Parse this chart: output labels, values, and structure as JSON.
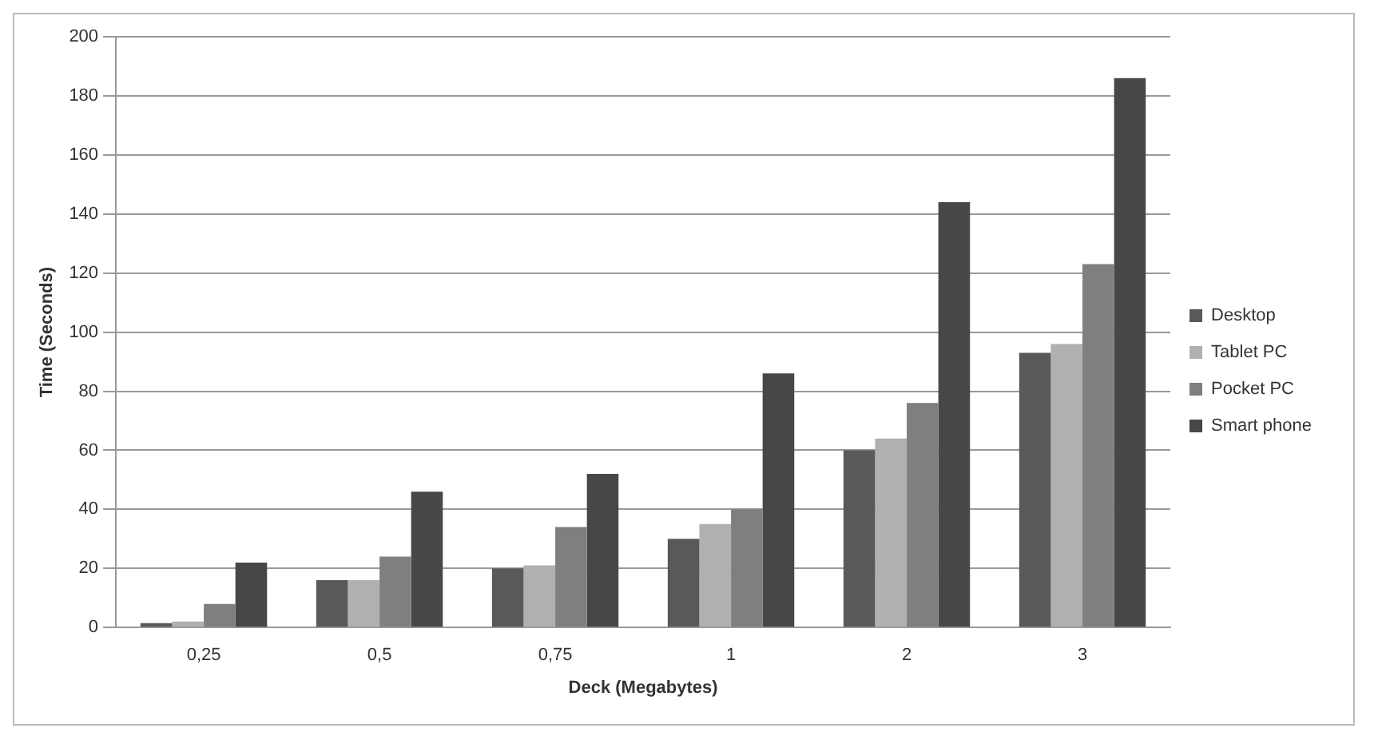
{
  "chart_data": {
    "type": "bar",
    "xlabel": "Deck (Megabytes)",
    "ylabel": "Time (Seconds)",
    "categories": [
      "0,25",
      "0,5",
      "0,75",
      "1",
      "2",
      "3"
    ],
    "series": [
      {
        "name": "Desktop",
        "color": "#595959",
        "values": [
          1.5,
          16,
          20,
          30,
          60,
          93
        ]
      },
      {
        "name": "Tablet PC",
        "color": "#b0b0b0",
        "values": [
          2,
          16,
          21,
          35,
          64,
          96
        ]
      },
      {
        "name": "Pocket PC",
        "color": "#7f7f7f",
        "values": [
          8,
          24,
          34,
          40,
          76,
          123
        ]
      },
      {
        "name": "Smart phone",
        "color": "#474747",
        "values": [
          22,
          46,
          52,
          86,
          144,
          186
        ]
      }
    ],
    "ylim": [
      0,
      200
    ],
    "yticks": [
      0,
      20,
      40,
      60,
      80,
      100,
      120,
      140,
      160,
      180,
      200
    ],
    "grid": "y",
    "legend": "right"
  }
}
